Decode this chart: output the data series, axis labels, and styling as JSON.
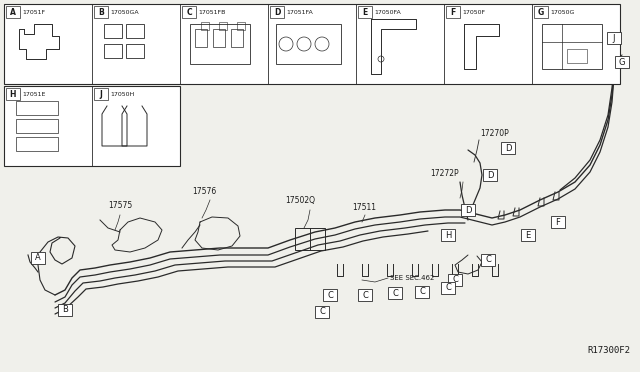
{
  "bg_color": "#f0f0eb",
  "line_color": "#2a2a2a",
  "box_color": "#ffffff",
  "text_color": "#1a1a1a",
  "diagram_ref": "R17300F2",
  "part_labels_row1": [
    {
      "letter": "A",
      "part": "17051F"
    },
    {
      "letter": "B",
      "part": "17050GA"
    },
    {
      "letter": "C",
      "part": "17051FB"
    },
    {
      "letter": "D",
      "part": "17051FA"
    },
    {
      "letter": "E",
      "part": "17050FA"
    },
    {
      "letter": "F",
      "part": "17050F"
    },
    {
      "letter": "G",
      "part": "17050G"
    }
  ],
  "part_labels_row2": [
    {
      "letter": "H",
      "part": "17051E"
    },
    {
      "letter": "J",
      "part": "17050H"
    }
  ]
}
